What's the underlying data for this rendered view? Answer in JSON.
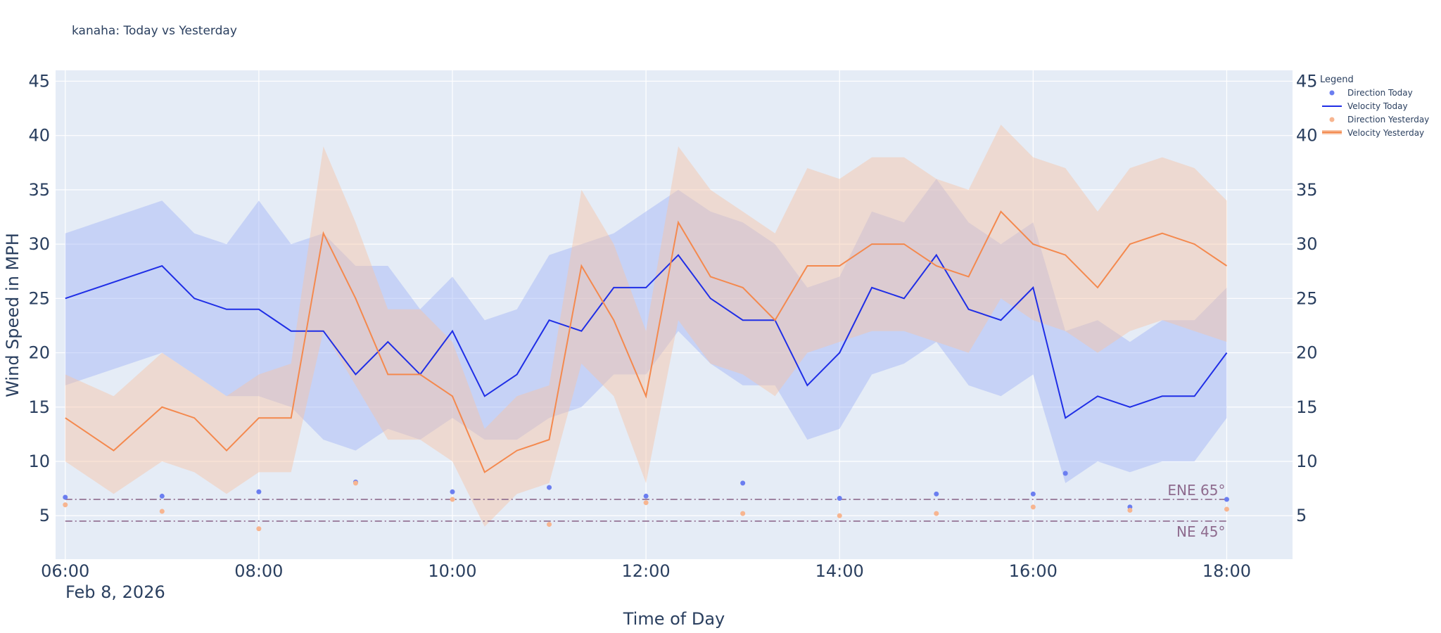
{
  "chart_data": {
    "type": "line",
    "title": "kanaha: Today vs Yesterday",
    "xlabel": "Time of Day",
    "ylabel": "Wind Speed in MPH",
    "x_start_label": "Feb 8, 2026",
    "x_range_hours": [
      5.9,
      18.68
    ],
    "ylim": [
      1,
      46
    ],
    "x_ticks": [
      "06:00",
      "08:00",
      "10:00",
      "12:00",
      "14:00",
      "16:00",
      "18:00"
    ],
    "y_ticks": [
      5,
      10,
      15,
      20,
      25,
      30,
      35,
      40,
      45
    ],
    "legend": {
      "title": "Legend",
      "items": [
        "Direction Today",
        "Velocity Today",
        "Direction Yesterday",
        "Velocity Yesterday"
      ]
    },
    "reference_lines": [
      {
        "label": "ENE 65°",
        "value": 6.5
      },
      {
        "label": "NE 45°",
        "value": 4.5
      }
    ],
    "series": [
      {
        "name": "Velocity Today",
        "color": "#1f2ee6",
        "band_color": "#9fb4f7",
        "x": [
          "06:00",
          "07:00",
          "07:20",
          "07:40",
          "08:00",
          "08:20",
          "08:40",
          "09:00",
          "09:20",
          "09:40",
          "10:00",
          "10:20",
          "10:40",
          "11:00",
          "11:20",
          "11:40",
          "12:00",
          "12:20",
          "12:40",
          "13:00",
          "13:20",
          "13:40",
          "14:00",
          "14:20",
          "14:40",
          "15:00",
          "15:20",
          "15:40",
          "16:00",
          "16:20",
          "16:40",
          "17:00",
          "17:20",
          "17:40",
          "18:00"
        ],
        "values": [
          25,
          28,
          25,
          24,
          24,
          22,
          22,
          18,
          21,
          18,
          22,
          16,
          18,
          23,
          22,
          26,
          26,
          29,
          25,
          23,
          23,
          17,
          20,
          26,
          25,
          29,
          24,
          23,
          26,
          14,
          16,
          15,
          16,
          16,
          20
        ],
        "lower": [
          17,
          20,
          18,
          16,
          16,
          15,
          12,
          11,
          13,
          12,
          14,
          12,
          12,
          14,
          15,
          18,
          18,
          22,
          19,
          17,
          17,
          12,
          13,
          18,
          19,
          21,
          17,
          16,
          18,
          8,
          10,
          9,
          10,
          10,
          14
        ],
        "upper": [
          31,
          34,
          31,
          30,
          34,
          30,
          31,
          28,
          28,
          24,
          27,
          23,
          24,
          29,
          30,
          31,
          33,
          35,
          33,
          32,
          30,
          26,
          27,
          33,
          32,
          36,
          32,
          30,
          32,
          22,
          23,
          21,
          23,
          23,
          26
        ]
      },
      {
        "name": "Velocity Yesterday",
        "color": "#f4894e",
        "band_color": "#f7c3a4",
        "x": [
          "06:00",
          "06:30",
          "07:00",
          "07:20",
          "07:40",
          "08:00",
          "08:20",
          "08:40",
          "09:00",
          "09:20",
          "09:40",
          "10:00",
          "10:20",
          "10:40",
          "11:00",
          "11:20",
          "11:40",
          "12:00",
          "12:20",
          "12:40",
          "13:00",
          "13:20",
          "13:40",
          "14:00",
          "14:20",
          "14:40",
          "15:00",
          "15:20",
          "15:40",
          "16:00",
          "16:20",
          "16:40",
          "17:00",
          "17:20",
          "17:40",
          "18:00"
        ],
        "values": [
          14,
          11,
          15,
          14,
          11,
          14,
          14,
          31,
          25,
          18,
          18,
          16,
          9,
          11,
          12,
          28,
          23,
          16,
          32,
          27,
          26,
          23,
          28,
          28,
          30,
          30,
          28,
          27,
          33,
          30,
          29,
          26,
          30,
          31,
          30,
          28
        ],
        "lower": [
          10,
          7,
          10,
          9,
          7,
          9,
          9,
          22,
          17,
          12,
          12,
          10,
          4,
          7,
          8,
          19,
          16,
          8,
          23,
          19,
          18,
          16,
          20,
          21,
          22,
          22,
          21,
          20,
          25,
          23,
          22,
          20,
          22,
          23,
          22,
          21
        ],
        "upper": [
          18,
          16,
          20,
          18,
          16,
          18,
          19,
          39,
          32,
          24,
          24,
          21,
          13,
          16,
          17,
          35,
          30,
          22,
          39,
          35,
          33,
          31,
          37,
          36,
          38,
          38,
          36,
          35,
          41,
          38,
          37,
          33,
          37,
          38,
          37,
          34
        ]
      },
      {
        "name": "Direction Today",
        "color": "#6b7ef0",
        "x": [
          "06:00",
          "07:00",
          "08:00",
          "09:00",
          "10:00",
          "11:00",
          "12:00",
          "13:00",
          "14:00",
          "15:00",
          "16:00",
          "16:20",
          "17:00",
          "18:00"
        ],
        "values": [
          6.7,
          6.8,
          7.2,
          8.1,
          7.2,
          7.6,
          6.8,
          8.0,
          6.6,
          7.0,
          7.0,
          8.9,
          5.8,
          6.5
        ]
      },
      {
        "name": "Direction Yesterday",
        "color": "#f7b590",
        "x": [
          "06:00",
          "07:00",
          "08:00",
          "09:00",
          "10:00",
          "11:00",
          "12:00",
          "13:00",
          "14:00",
          "15:00",
          "16:00",
          "17:00",
          "18:00"
        ],
        "values": [
          6.0,
          5.4,
          3.8,
          8.0,
          6.5,
          4.2,
          6.2,
          5.2,
          5.0,
          5.2,
          5.8,
          5.5,
          5.6
        ]
      }
    ]
  }
}
